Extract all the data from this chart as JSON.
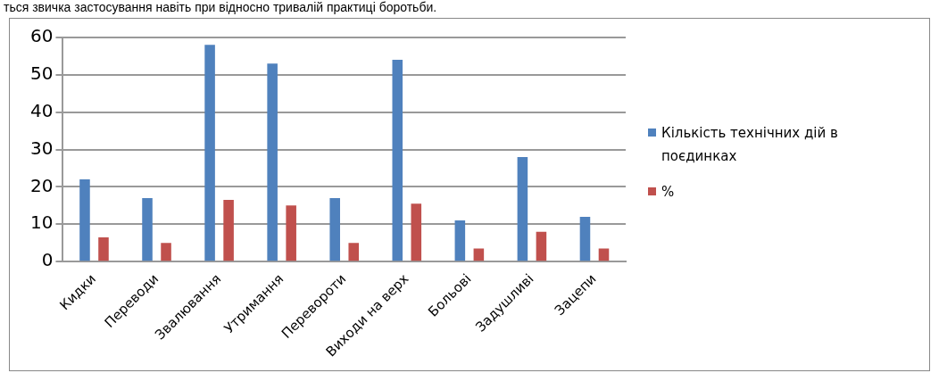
{
  "chart_data": {
    "type": "bar",
    "categories": [
      "Кидки",
      "Переводи",
      "Звалювання",
      "Утримання",
      "Перевороти",
      "Виходи на верх",
      "Больові",
      "Задушливі",
      "Зацепи"
    ],
    "series": [
      {
        "name": "Кількість технічних дій в поєдинках",
        "color": "#4f81bd",
        "values": [
          22,
          17,
          58,
          53,
          17,
          54,
          11,
          28,
          12
        ]
      },
      {
        "name": "%",
        "color": "#c0504d",
        "values": [
          6.5,
          5,
          16.5,
          15,
          5,
          15.5,
          3.5,
          8,
          3.5
        ]
      }
    ],
    "ylim": [
      0,
      60
    ],
    "yticks": [
      0,
      10,
      20,
      30,
      40,
      50,
      60
    ],
    "grid": "y",
    "legend": "right",
    "annotations": [
      "ться звичка застосування навіть при відносно тривалій практиці боротьби."
    ]
  }
}
